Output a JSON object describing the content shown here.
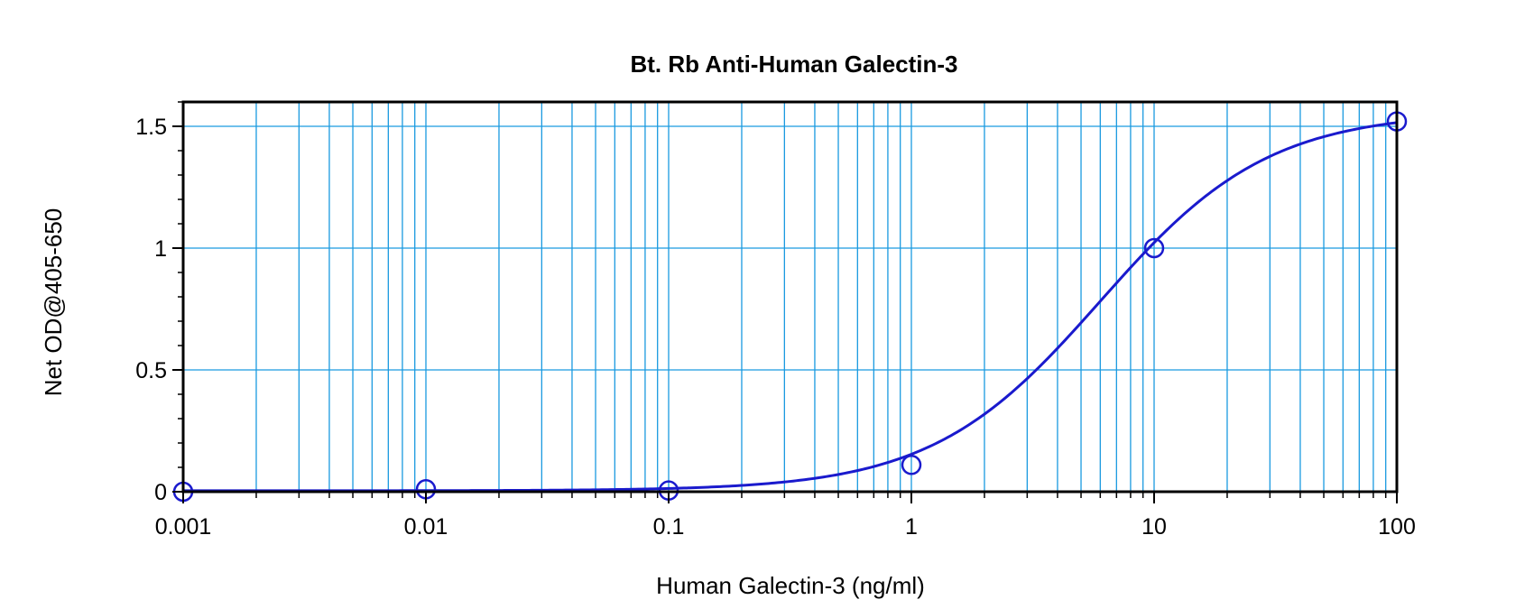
{
  "chart_data": {
    "type": "scatter",
    "title": "Bt. Rb Anti-Human Galectin-3",
    "xlabel": "Human Galectin-3 (ng/ml)",
    "ylabel": "Net OD@405-650",
    "x_scale": "log",
    "xlim": [
      0.001,
      100
    ],
    "ylim": [
      0,
      1.6
    ],
    "x_ticks": [
      0.001,
      0.01,
      0.1,
      1,
      10,
      100
    ],
    "x_tick_labels": [
      "0.001",
      "0.01",
      "0.1",
      "1",
      "10",
      "100"
    ],
    "y_ticks": [
      0,
      0.5,
      1,
      1.5
    ],
    "y_tick_labels": [
      "0",
      "0.5",
      "1",
      "1.5"
    ],
    "grid": true,
    "series": [
      {
        "x": [
          0.001,
          0.01,
          0.1,
          1,
          10,
          100
        ],
        "y": [
          0.0,
          0.01,
          0.005,
          0.11,
          1.0,
          1.52
        ]
      }
    ],
    "fit_curve": {
      "model": "4PL",
      "bottom": 0.004,
      "top": 1.56,
      "ec50": 6.0,
      "hill": 1.25
    },
    "colors": {
      "data": "#1a1acd",
      "grid": "#1a9ae0",
      "frame": "#000000"
    }
  }
}
